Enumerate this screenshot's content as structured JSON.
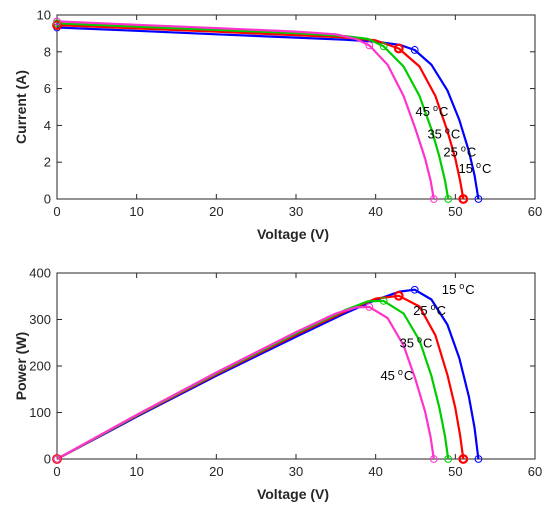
{
  "colors": {
    "15C": "#0000ff",
    "25C": "#ff0000",
    "35C": "#00cc00",
    "45C": "#ff33cc",
    "axis": "#262626"
  },
  "chart_data": [
    {
      "type": "line",
      "xlabel": "Voltage (V)",
      "ylabel": "Current (A)",
      "xlim": [
        0,
        60
      ],
      "ylim": [
        0,
        10
      ],
      "xticks": [
        "0",
        "10",
        "20",
        "30",
        "40",
        "50",
        "60"
      ],
      "yticks": [
        "0",
        "2",
        "4",
        "6",
        "8",
        "10"
      ],
      "grid": false,
      "series": [
        {
          "key": "15C",
          "label_value": "15",
          "label_unit": "C",
          "x": [
            0,
            10,
            20,
            30,
            36,
            40,
            43,
            44.9,
            47,
            49,
            50.5,
            51.7,
            52.4,
            52.9
          ],
          "y": [
            9.32,
            9.14,
            8.95,
            8.77,
            8.66,
            8.55,
            8.38,
            8.1,
            7.3,
            5.9,
            4.3,
            2.6,
            1.3,
            0
          ]
        },
        {
          "key": "25C",
          "label_value": "25",
          "label_unit": "C",
          "x": [
            0,
            10,
            20,
            30,
            36,
            40,
            42.9,
            45.5,
            47.5,
            49,
            50,
            50.6,
            51
          ],
          "y": [
            9.45,
            9.27,
            9.09,
            8.9,
            8.78,
            8.62,
            8.18,
            7.2,
            5.6,
            3.7,
            2.2,
            1.0,
            0
          ]
        },
        {
          "key": "35C",
          "label_value": "35",
          "label_unit": "C",
          "x": [
            0,
            10,
            20,
            30,
            36,
            39,
            41,
            43.5,
            45.5,
            47,
            48,
            48.7,
            49.1
          ],
          "y": [
            9.55,
            9.37,
            9.19,
            9.01,
            8.86,
            8.7,
            8.3,
            7.2,
            5.6,
            3.8,
            2.3,
            1.0,
            0
          ]
        },
        {
          "key": "45C",
          "label_value": "45",
          "label_unit": "C",
          "x": [
            0,
            10,
            20,
            30,
            35,
            37.5,
            39.2,
            41.5,
            43.5,
            45,
            46.2,
            46.9,
            47.3
          ],
          "y": [
            9.65,
            9.47,
            9.29,
            9.1,
            8.95,
            8.7,
            8.35,
            7.3,
            5.6,
            3.8,
            2.2,
            1.0,
            0
          ]
        }
      ],
      "markers": [
        {
          "key": "15C",
          "points": [
            [
              0,
              9.32
            ],
            [
              44.9,
              8.1
            ],
            [
              52.9,
              0
            ]
          ]
        },
        {
          "key": "25C",
          "points": [
            [
              0,
              9.45
            ],
            [
              42.9,
              8.18
            ],
            [
              51,
              0
            ]
          ],
          "bold": true
        },
        {
          "key": "35C",
          "points": [
            [
              0,
              9.55
            ],
            [
              41,
              8.3
            ],
            [
              49.1,
              0
            ]
          ]
        },
        {
          "key": "45C",
          "points": [
            [
              0,
              9.65
            ],
            [
              39.2,
              8.35
            ],
            [
              47.3,
              0
            ]
          ]
        }
      ],
      "annotations": [
        {
          "key": "45C",
          "value": "45",
          "unit": "C",
          "x": 45.0,
          "y": 4.5
        },
        {
          "key": "35C",
          "value": "35",
          "unit": "C",
          "x": 46.5,
          "y": 3.3
        },
        {
          "key": "25C",
          "value": "25",
          "unit": "C",
          "x": 48.5,
          "y": 2.3
        },
        {
          "key": "15C",
          "value": "15",
          "unit": "C",
          "x": 50.4,
          "y": 1.4
        }
      ]
    },
    {
      "type": "line",
      "xlabel": "Voltage (V)",
      "ylabel": "Power (W)",
      "xlim": [
        0,
        60
      ],
      "ylim": [
        0,
        400
      ],
      "xticks": [
        "0",
        "10",
        "20",
        "30",
        "40",
        "50",
        "60"
      ],
      "yticks": [
        "0",
        "100",
        "200",
        "300",
        "400"
      ],
      "grid": false,
      "series": [
        {
          "key": "15C",
          "label_value": "15",
          "label_unit": "C",
          "x": [
            0,
            10,
            20,
            30,
            36,
            40,
            43,
            44.9,
            47,
            49,
            50.5,
            51.7,
            52.4,
            52.9
          ],
          "y": [
            0,
            91,
            179,
            263,
            312,
            342,
            360,
            364,
            343,
            289,
            217,
            134,
            68,
            0
          ]
        },
        {
          "key": "25C",
          "label_value": "25",
          "label_unit": "C",
          "x": [
            0,
            10,
            20,
            30,
            36,
            40,
            42.9,
            45.5,
            47.5,
            49,
            50,
            50.6,
            51
          ],
          "y": [
            0,
            93,
            182,
            267,
            316,
            345,
            351,
            328,
            266,
            181,
            110,
            51,
            0
          ]
        },
        {
          "key": "35C",
          "label_value": "35",
          "label_unit": "C",
          "x": [
            0,
            10,
            20,
            30,
            36,
            39,
            41,
            43.5,
            45.5,
            47,
            48,
            48.7,
            49.1
          ],
          "y": [
            0,
            94,
            184,
            270,
            319,
            339,
            340,
            313,
            255,
            179,
            110,
            49,
            0
          ]
        },
        {
          "key": "45C",
          "label_value": "45",
          "label_unit": "C",
          "x": [
            0,
            10,
            20,
            30,
            35,
            37.5,
            39.2,
            41.5,
            43.5,
            45,
            46.2,
            46.9,
            47.3
          ],
          "y": [
            0,
            95,
            186,
            273,
            313,
            326,
            327,
            303,
            244,
            171,
            102,
            47,
            0
          ]
        }
      ],
      "markers": [
        {
          "key": "15C",
          "points": [
            [
              0,
              0
            ],
            [
              44.9,
              364
            ],
            [
              52.9,
              0
            ]
          ]
        },
        {
          "key": "25C",
          "points": [
            [
              0,
              0
            ],
            [
              42.9,
              351
            ],
            [
              51,
              0
            ]
          ],
          "bold": true
        },
        {
          "key": "35C",
          "points": [
            [
              0,
              0
            ],
            [
              41,
              340
            ],
            [
              49.1,
              0
            ]
          ]
        },
        {
          "key": "45C",
          "points": [
            [
              0,
              0
            ],
            [
              39.2,
              327
            ],
            [
              47.3,
              0
            ]
          ]
        }
      ],
      "annotations": [
        {
          "key": "15C",
          "value": "15",
          "unit": "C",
          "x": 48.3,
          "y": 355
        },
        {
          "key": "25C",
          "value": "25",
          "unit": "C",
          "x": 44.7,
          "y": 310
        },
        {
          "key": "35C",
          "value": "35",
          "unit": "C",
          "x": 43.0,
          "y": 240
        },
        {
          "key": "45C",
          "value": "45",
          "unit": "C",
          "x": 40.6,
          "y": 170
        }
      ]
    }
  ]
}
